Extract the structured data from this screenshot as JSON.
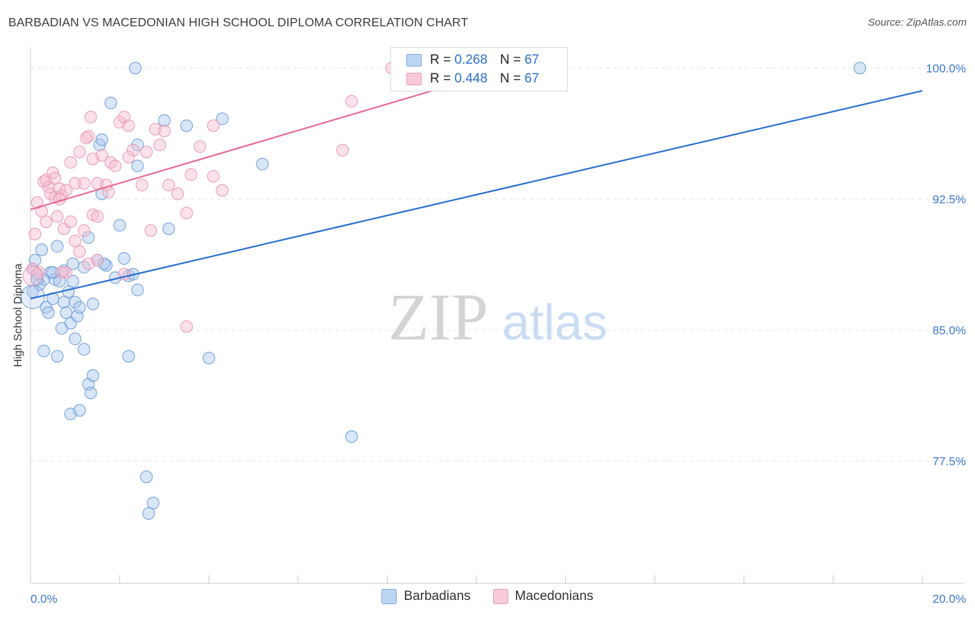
{
  "header": {
    "title": "BARBADIAN VS MACEDONIAN HIGH SCHOOL DIPLOMA CORRELATION CHART",
    "source": "Source: ZipAtlas.com"
  },
  "watermark": {
    "zip": "ZIP",
    "atlas": "atlas"
  },
  "legend_top": {
    "rows": [
      {
        "r_label": "R =",
        "r_value": "0.268",
        "n_label": "N =",
        "n_value": "67"
      },
      {
        "r_label": "R =",
        "r_value": "0.448",
        "n_label": "N =",
        "n_value": "67"
      }
    ]
  },
  "legend_bottom": {
    "items": [
      "Barbadians",
      "Macedonians"
    ]
  },
  "colors": {
    "blue_fill": "#a8c8ef",
    "blue_stroke": "#6a9ad6",
    "blue_line": "#2b6fcc",
    "pink_fill": "#f6bdd0",
    "pink_stroke": "#e995b2",
    "pink_line": "#e56b93",
    "tick_text": "#3a78cf",
    "grid": "#e4e4e4"
  },
  "chart_data": {
    "type": "scatter",
    "title": "BARBADIAN VS MACEDONIAN HIGH SCHOOL DIPLOMA CORRELATION CHART",
    "xlabel": "",
    "ylabel": "High School Diploma",
    "xlim": [
      0,
      20
    ],
    "ylim": [
      70.5,
      101.2
    ],
    "x_tick_labels": [
      {
        "value": 0,
        "label": "0.0%"
      },
      {
        "value": 20,
        "label": "20.0%"
      }
    ],
    "y_tick_labels": [
      {
        "value": 100,
        "label": "100.0%"
      },
      {
        "value": 92.5,
        "label": "92.5%"
      },
      {
        "value": 85,
        "label": "85.0%"
      },
      {
        "value": 77.5,
        "label": "77.5%"
      }
    ],
    "series": [
      {
        "name": "Barbadians",
        "color": "blue",
        "trend": {
          "x": [
            0,
            20
          ],
          "y": [
            86.8,
            98.7
          ]
        },
        "points": [
          [
            0.05,
            88.5
          ],
          [
            0.1,
            89.0
          ],
          [
            0.15,
            88.2
          ],
          [
            0.2,
            87.6
          ],
          [
            0.25,
            89.6
          ],
          [
            0.3,
            87.9
          ],
          [
            0.35,
            86.3
          ],
          [
            0.4,
            86.0
          ],
          [
            0.45,
            88.3
          ],
          [
            0.5,
            86.8
          ],
          [
            0.55,
            87.9
          ],
          [
            0.6,
            89.8
          ],
          [
            0.65,
            87.8
          ],
          [
            0.7,
            85.1
          ],
          [
            0.75,
            86.6
          ],
          [
            0.8,
            86.0
          ],
          [
            0.85,
            87.2
          ],
          [
            0.9,
            85.4
          ],
          [
            0.95,
            87.8
          ],
          [
            1.0,
            86.6
          ],
          [
            1.05,
            85.8
          ],
          [
            1.1,
            86.3
          ],
          [
            1.2,
            88.6
          ],
          [
            1.3,
            90.3
          ],
          [
            1.4,
            86.5
          ],
          [
            1.5,
            89.0
          ],
          [
            1.6,
            92.8
          ],
          [
            1.7,
            88.7
          ],
          [
            1.8,
            98.0
          ],
          [
            1.9,
            88.0
          ],
          [
            2.0,
            91.0
          ],
          [
            2.1,
            89.1
          ],
          [
            2.2,
            88.1
          ],
          [
            2.3,
            88.2
          ],
          [
            2.4,
            87.3
          ],
          [
            0.3,
            83.8
          ],
          [
            0.6,
            83.5
          ],
          [
            0.9,
            80.2
          ],
          [
            1.1,
            80.4
          ],
          [
            1.2,
            83.9
          ],
          [
            1.3,
            81.9
          ],
          [
            1.35,
            81.4
          ],
          [
            1.4,
            82.4
          ],
          [
            2.2,
            83.5
          ],
          [
            2.6,
            76.6
          ],
          [
            2.75,
            75.1
          ],
          [
            2.65,
            74.5
          ],
          [
            4.0,
            83.4
          ],
          [
            7.2,
            78.9
          ],
          [
            2.4,
            95.6
          ],
          [
            2.4,
            94.4
          ],
          [
            3.0,
            97.0
          ],
          [
            3.1,
            90.8
          ],
          [
            3.5,
            96.7
          ],
          [
            4.3,
            97.1
          ],
          [
            5.2,
            94.5
          ],
          [
            1.55,
            95.6
          ],
          [
            1.6,
            95.9
          ],
          [
            2.35,
            100.0
          ],
          [
            18.6,
            100.0
          ],
          [
            0.5,
            88.3
          ],
          [
            0.75,
            88.4
          ],
          [
            0.95,
            88.8
          ],
          [
            1.0,
            84.5
          ],
          [
            1.65,
            88.8
          ],
          [
            0.15,
            87.9
          ],
          [
            0.05,
            87.2
          ]
        ]
      },
      {
        "name": "Macedonians",
        "color": "pink",
        "trend": {
          "x": [
            0,
            10.2
          ],
          "y": [
            91.9,
            99.6
          ]
        },
        "points": [
          [
            0.05,
            88.5
          ],
          [
            0.1,
            90.5
          ],
          [
            0.15,
            92.3
          ],
          [
            0.2,
            88.3
          ],
          [
            0.25,
            91.8
          ],
          [
            0.3,
            93.5
          ],
          [
            0.35,
            91.2
          ],
          [
            0.4,
            93.2
          ],
          [
            0.45,
            92.8
          ],
          [
            0.5,
            94.0
          ],
          [
            0.55,
            92.6
          ],
          [
            0.6,
            91.5
          ],
          [
            0.65,
            93.1
          ],
          [
            0.7,
            92.7
          ],
          [
            0.8,
            93.0
          ],
          [
            0.9,
            94.6
          ],
          [
            1.0,
            93.4
          ],
          [
            1.1,
            95.2
          ],
          [
            1.2,
            93.4
          ],
          [
            1.3,
            96.1
          ],
          [
            1.35,
            97.2
          ],
          [
            1.4,
            94.8
          ],
          [
            1.5,
            93.4
          ],
          [
            1.6,
            95.0
          ],
          [
            1.7,
            93.3
          ],
          [
            1.75,
            92.9
          ],
          [
            1.8,
            94.6
          ],
          [
            1.9,
            94.4
          ],
          [
            2.0,
            96.9
          ],
          [
            2.1,
            97.2
          ],
          [
            2.2,
            96.7
          ],
          [
            2.3,
            95.3
          ],
          [
            2.5,
            93.3
          ],
          [
            2.6,
            95.2
          ],
          [
            2.8,
            96.5
          ],
          [
            2.9,
            95.6
          ],
          [
            3.0,
            96.4
          ],
          [
            3.1,
            93.3
          ],
          [
            3.3,
            92.8
          ],
          [
            3.5,
            91.7
          ],
          [
            3.6,
            93.9
          ],
          [
            3.8,
            95.5
          ],
          [
            4.1,
            93.8
          ],
          [
            4.3,
            93.0
          ],
          [
            0.8,
            88.3
          ],
          [
            1.0,
            90.1
          ],
          [
            1.1,
            89.5
          ],
          [
            1.2,
            90.7
          ],
          [
            1.4,
            91.6
          ],
          [
            1.5,
            91.5
          ],
          [
            2.1,
            88.2
          ],
          [
            2.7,
            90.7
          ],
          [
            3.5,
            85.2
          ],
          [
            7.0,
            95.3
          ],
          [
            7.2,
            98.1
          ],
          [
            8.1,
            100.0
          ],
          [
            0.75,
            90.8
          ],
          [
            0.9,
            91.2
          ],
          [
            1.5,
            89.0
          ],
          [
            1.3,
            88.8
          ],
          [
            0.7,
            88.3
          ],
          [
            4.1,
            96.7
          ],
          [
            2.2,
            94.9
          ],
          [
            0.35,
            93.6
          ],
          [
            0.55,
            93.7
          ],
          [
            0.65,
            92.5
          ],
          [
            1.25,
            96.0
          ]
        ]
      }
    ]
  }
}
